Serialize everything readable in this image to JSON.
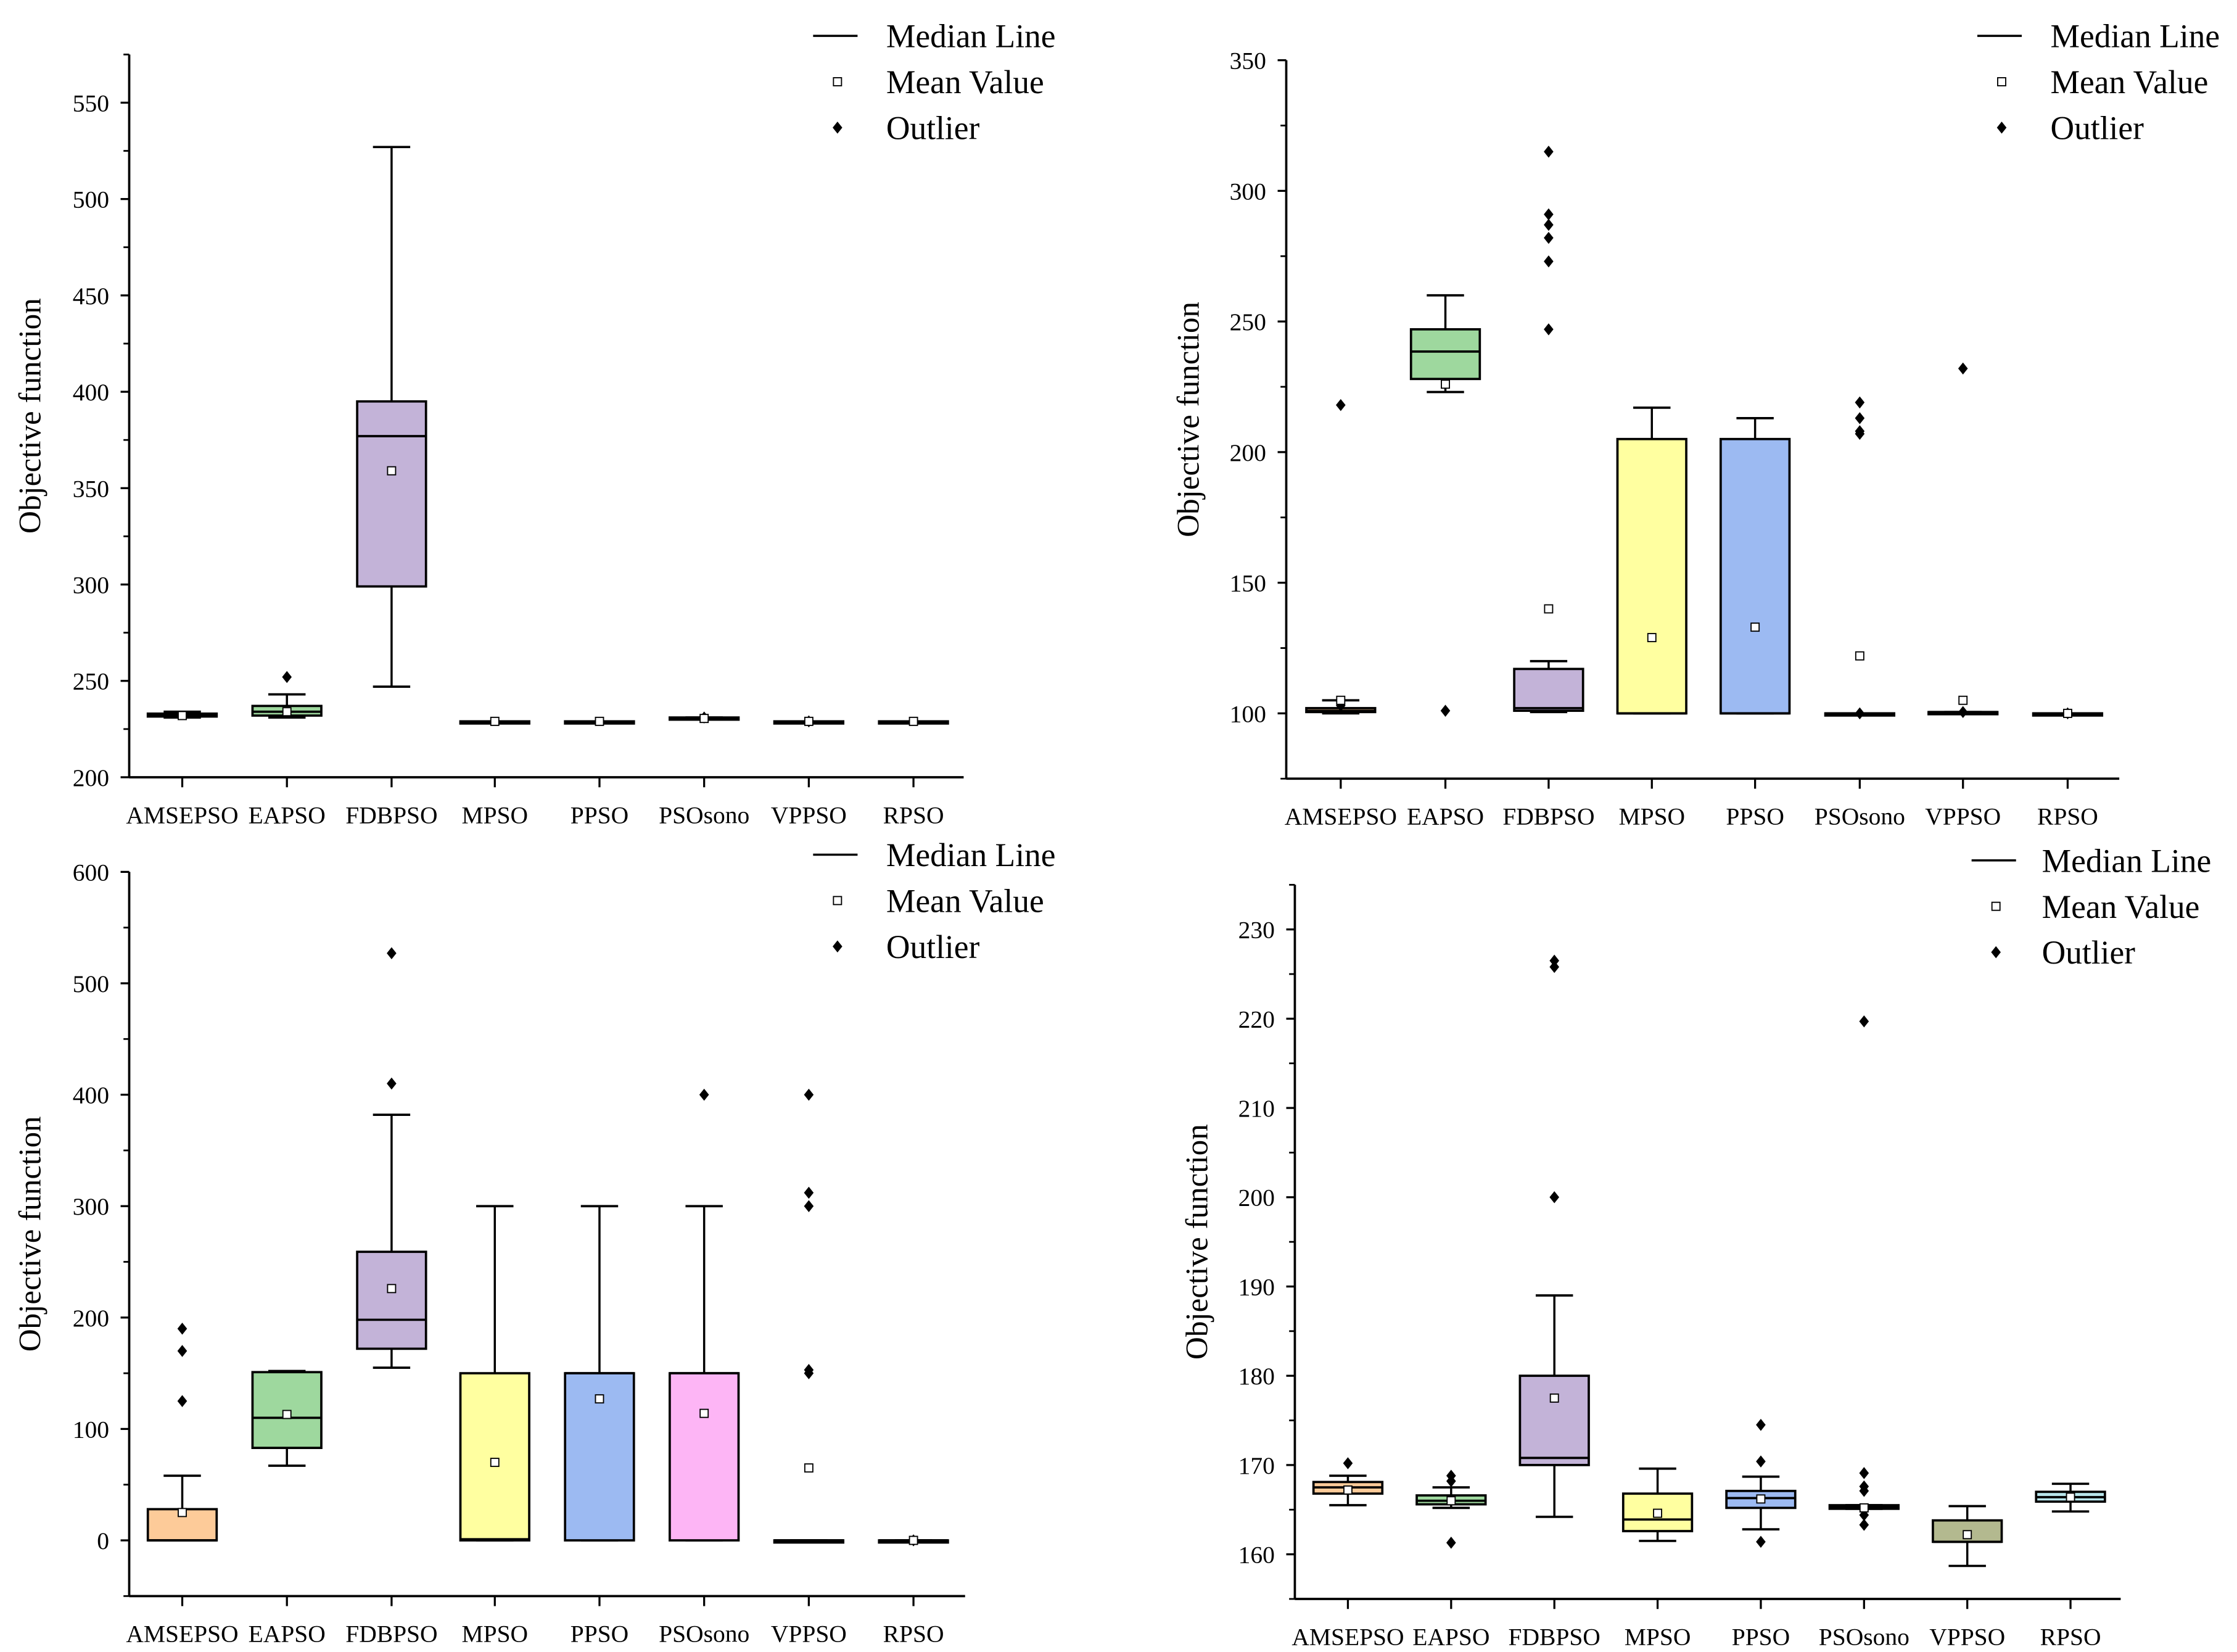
{
  "legend": {
    "median": "Median Line",
    "mean": "Mean Value",
    "outlier": "Outlier"
  },
  "colors": {
    "AMSEPSO": "#FDCB99",
    "EAPSO": "#9ED89E",
    "FDBPSO": "#C3B3D8",
    "MPSO": "#FFFFA0",
    "PPSO": "#9CBAF2",
    "PSOsono": "#FDB5F5",
    "VPPSO": "#B3B98F",
    "RPSO": "#B8E6EC"
  },
  "chart_data": [
    {
      "type": "box",
      "title": "",
      "xlabel": "",
      "ylabel": "Objective function",
      "ylim": [
        200,
        575
      ],
      "yticks": [
        200,
        250,
        300,
        350,
        400,
        450,
        500,
        550
      ],
      "legend_position": "top-right",
      "categories": [
        "AMSEPSO",
        "EAPSO",
        "FDBPSO",
        "MPSO",
        "PPSO",
        "PSOsono",
        "VPPSO",
        "RPSO"
      ],
      "boxes": [
        {
          "min": 231,
          "q1": 231.5,
          "median": 232,
          "q3": 233,
          "max": 234,
          "mean": 232,
          "outliers": []
        },
        {
          "min": 231,
          "q1": 232,
          "median": 234,
          "q3": 237,
          "max": 243,
          "mean": 234,
          "outliers": [
            252
          ]
        },
        {
          "min": 247,
          "q1": 299,
          "median": 377,
          "q3": 395,
          "max": 527,
          "mean": 359,
          "outliers": []
        },
        {
          "min": 229,
          "q1": 229,
          "median": 229,
          "q3": 229,
          "max": 229,
          "mean": 229,
          "outliers": []
        },
        {
          "min": 229,
          "q1": 229,
          "median": 229,
          "q3": 229,
          "max": 229,
          "mean": 229,
          "outliers": []
        },
        {
          "min": 230,
          "q1": 230.5,
          "median": 230.5,
          "q3": 231,
          "max": 231,
          "mean": 230.5,
          "outliers": [
            231
          ]
        },
        {
          "min": 229,
          "q1": 229,
          "median": 229,
          "q3": 229,
          "max": 229,
          "mean": 229,
          "outliers": [
            229
          ]
        },
        {
          "min": 229,
          "q1": 229,
          "median": 229,
          "q3": 229,
          "max": 229,
          "mean": 229,
          "outliers": []
        }
      ]
    },
    {
      "type": "box",
      "title": "",
      "xlabel": "",
      "ylabel": "Objective function",
      "ylim": [
        75,
        350
      ],
      "yticks": [
        100,
        150,
        200,
        250,
        300,
        350
      ],
      "legend_position": "top-right",
      "categories": [
        "AMSEPSO",
        "EAPSO",
        "FDBPSO",
        "MPSO",
        "PPSO",
        "PSOsono",
        "VPPSO",
        "RPSO"
      ],
      "boxes": [
        {
          "min": 100,
          "q1": 100.5,
          "median": 101,
          "q3": 102,
          "max": 105,
          "mean": 105,
          "outliers": [
            218,
            103
          ]
        },
        {
          "min": 223,
          "q1": 228,
          "median": 238.5,
          "q3": 247,
          "max": 260,
          "mean": 226,
          "outliers": [
            101
          ]
        },
        {
          "min": 100.5,
          "q1": 101,
          "median": 102,
          "q3": 117,
          "max": 120,
          "mean": 140,
          "outliers": [
            247,
            273,
            282,
            287,
            291,
            315
          ]
        },
        {
          "min": 100,
          "q1": 100,
          "median": 100,
          "q3": 205,
          "max": 217,
          "mean": 129,
          "outliers": []
        },
        {
          "min": 100,
          "q1": 100,
          "median": 100,
          "q3": 205,
          "max": 213,
          "mean": 133,
          "outliers": []
        },
        {
          "min": 100,
          "q1": 100,
          "median": 100,
          "q3": 100,
          "max": 100,
          "mean": 122,
          "outliers": [
            100,
            207,
            208,
            213,
            219
          ]
        },
        {
          "min": 100,
          "q1": 100,
          "median": 100.5,
          "q3": 100.5,
          "max": 100.5,
          "mean": 105,
          "outliers": [
            100.5,
            232
          ]
        },
        {
          "min": 100,
          "q1": 100,
          "median": 100,
          "q3": 100,
          "max": 100,
          "mean": 100,
          "outliers": [
            100
          ]
        }
      ]
    },
    {
      "type": "box",
      "title": "",
      "xlabel": "",
      "ylabel": "Objective function",
      "ylim": [
        -50,
        600
      ],
      "yticks": [
        0,
        100,
        200,
        300,
        400,
        500,
        600
      ],
      "legend_position": "top-right",
      "categories": [
        "AMSEPSO",
        "EAPSO",
        "FDBPSO",
        "MPSO",
        "PPSO",
        "PSOsono",
        "VPPSO",
        "RPSO"
      ],
      "boxes": [
        {
          "min": 0,
          "q1": 0,
          "median": 0,
          "q3": 28,
          "max": 58,
          "mean": 25,
          "outliers": [
            125,
            170,
            190
          ]
        },
        {
          "min": 67,
          "q1": 83,
          "median": 110,
          "q3": 151,
          "max": 152,
          "mean": 113,
          "outliers": []
        },
        {
          "min": 155,
          "q1": 172,
          "median": 198,
          "q3": 259,
          "max": 382,
          "mean": 226,
          "outliers": [
            410,
            527
          ]
        },
        {
          "min": 0,
          "q1": 0,
          "median": 1,
          "q3": 150,
          "max": 300,
          "mean": 70,
          "outliers": []
        },
        {
          "min": 0,
          "q1": 0,
          "median": 150,
          "q3": 150,
          "max": 300,
          "mean": 127,
          "outliers": []
        },
        {
          "min": 0,
          "q1": 0,
          "median": 150,
          "q3": 150,
          "max": 300,
          "mean": 114,
          "outliers": [
            400
          ]
        },
        {
          "min": 0,
          "q1": 0,
          "median": 0,
          "q3": 0,
          "max": 0,
          "mean": 65,
          "outliers": [
            150,
            153,
            300,
            312,
            400
          ]
        },
        {
          "min": 0,
          "q1": 0,
          "median": 0,
          "q3": 0,
          "max": 0,
          "mean": 0,
          "outliers": [
            0
          ]
        }
      ]
    },
    {
      "type": "box",
      "title": "",
      "xlabel": "",
      "ylabel": "Objective function",
      "ylim": [
        155,
        235
      ],
      "yticks": [
        160,
        170,
        180,
        190,
        200,
        210,
        220,
        230
      ],
      "legend_position": "top-right",
      "categories": [
        "AMSEPSO",
        "EAPSO",
        "FDBPSO",
        "MPSO",
        "PPSO",
        "PSOsono",
        "VPPSO",
        "RPSO"
      ],
      "boxes": [
        {
          "min": 165.5,
          "q1": 166.8,
          "median": 167.5,
          "q3": 168.1,
          "max": 168.8,
          "mean": 167.2,
          "outliers": [
            170.2
          ]
        },
        {
          "min": 165.2,
          "q1": 165.6,
          "median": 166.0,
          "q3": 166.6,
          "max": 167.5,
          "mean": 166.0,
          "outliers": [
            161.3,
            168.2,
            168.8
          ]
        },
        {
          "min": 164.2,
          "q1": 170,
          "median": 170.8,
          "q3": 180,
          "max": 189,
          "mean": 177.5,
          "outliers": [
            200,
            225.8,
            226.5
          ]
        },
        {
          "min": 161.5,
          "q1": 162.6,
          "median": 163.9,
          "q3": 166.8,
          "max": 169.6,
          "mean": 164.6,
          "outliers": []
        },
        {
          "min": 162.8,
          "q1": 165.2,
          "median": 166.3,
          "q3": 167.1,
          "max": 168.7,
          "mean": 166.2,
          "outliers": [
            161.4,
            170.4,
            174.5
          ]
        },
        {
          "min": 165.1,
          "q1": 165.1,
          "median": 165.3,
          "q3": 165.5,
          "max": 165.5,
          "mean": 165.2,
          "outliers": [
            163.3,
            164.4,
            167.1,
            167.6,
            169.1,
            219.7
          ]
        },
        {
          "min": 158.7,
          "q1": 161.4,
          "median": 161.4,
          "q3": 163.8,
          "max": 165.4,
          "mean": 162.2,
          "outliers": []
        },
        {
          "min": 164.8,
          "q1": 165.9,
          "median": 166.4,
          "q3": 167.0,
          "max": 167.9,
          "mean": 166.4,
          "outliers": []
        }
      ]
    }
  ]
}
